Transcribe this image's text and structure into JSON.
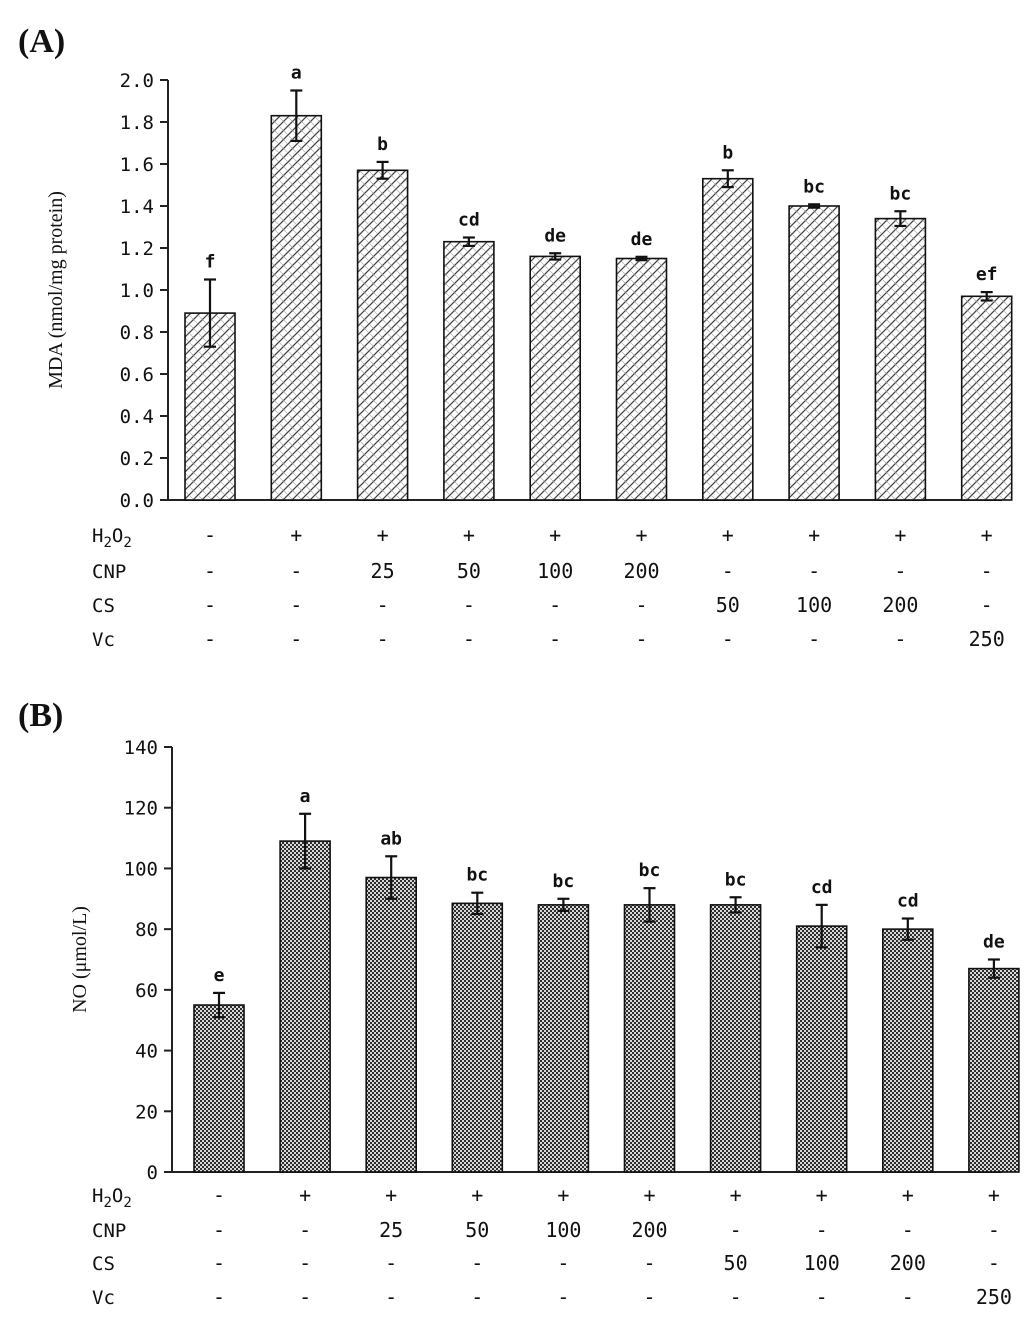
{
  "chart_data": [
    {
      "panel": "(A)",
      "type": "bar",
      "ylabel": "MDA (nmol/mg protein)",
      "ylim": [
        0,
        2
      ],
      "yticks": [
        "0.0",
        "0.2",
        "0.4",
        "0.6",
        "0.8",
        "1.0",
        "1.2",
        "1.4",
        "1.6",
        "1.8",
        "2.0"
      ],
      "values": [
        0.89,
        1.83,
        1.57,
        1.23,
        1.16,
        1.15,
        1.53,
        1.4,
        1.34,
        0.97
      ],
      "errors": [
        0.16,
        0.12,
        0.04,
        0.02,
        0.015,
        0.008,
        0.04,
        0.008,
        0.035,
        0.02
      ],
      "letters": [
        "f",
        "a",
        "b",
        "cd",
        "de",
        "de",
        "b",
        "bc",
        "bc",
        "ef"
      ],
      "pattern": "diagonal-hatch",
      "conditions": [
        {
          "name": "H2O2",
          "cells": [
            "-",
            "+",
            "+",
            "+",
            "+",
            "+",
            "+",
            "+",
            "+",
            "+"
          ]
        },
        {
          "name": "CNP",
          "cells": [
            "-",
            "-",
            "25",
            "50",
            "100",
            "200",
            "-",
            "-",
            "-",
            "-"
          ]
        },
        {
          "name": "CS",
          "cells": [
            "-",
            "-",
            "-",
            "-",
            "-",
            "-",
            "50",
            "100",
            "200",
            "-"
          ]
        },
        {
          "name": "Vc",
          "cells": [
            "-",
            "-",
            "-",
            "-",
            "-",
            "-",
            "-",
            "-",
            "-",
            "250"
          ]
        }
      ]
    },
    {
      "panel": "(B)",
      "type": "bar",
      "ylabel": "NO (μmol/L)",
      "ylim": [
        0,
        140
      ],
      "yticks": [
        "0",
        "20",
        "40",
        "60",
        "80",
        "100",
        "120",
        "140"
      ],
      "values": [
        55,
        109,
        97,
        88.5,
        88,
        88,
        88,
        81,
        80,
        67
      ],
      "errors": [
        4,
        9,
        7,
        3.5,
        2,
        5.5,
        2.5,
        7,
        3.5,
        3
      ],
      "letters": [
        "e",
        "a",
        "ab",
        "bc",
        "bc",
        "bc",
        "bc",
        "cd",
        "cd",
        "de"
      ],
      "pattern": "dense-crosshatch",
      "conditions": [
        {
          "name": "H2O2",
          "cells": [
            "-",
            "+",
            "+",
            "+",
            "+",
            "+",
            "+",
            "+",
            "+",
            "+"
          ]
        },
        {
          "name": "CNP",
          "cells": [
            "-",
            "-",
            "25",
            "50",
            "100",
            "200",
            "-",
            "-",
            "-",
            "-"
          ]
        },
        {
          "name": "CS",
          "cells": [
            "-",
            "-",
            "-",
            "-",
            "-",
            "-",
            "50",
            "100",
            "200",
            "-"
          ]
        },
        {
          "name": "Vc",
          "cells": [
            "-",
            "-",
            "-",
            "-",
            "-",
            "-",
            "-",
            "-",
            "-",
            "250"
          ]
        }
      ]
    }
  ]
}
